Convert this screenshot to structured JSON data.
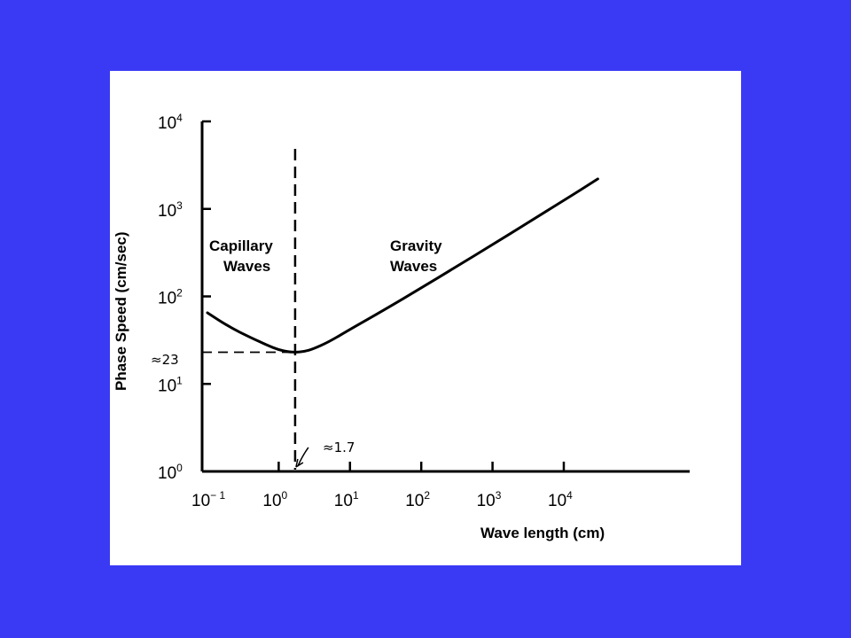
{
  "colors": {
    "background": "#3a3af5",
    "panel": "#ffffff",
    "ink": "#000000"
  },
  "chart_data": {
    "type": "line",
    "title": "",
    "xlabel": "Wave length (cm)",
    "ylabel": "Phase Speed (cm/sec)",
    "xscale": "log",
    "yscale": "log",
    "xlim": [
      0.1,
      30000
    ],
    "ylim": [
      1,
      10000
    ],
    "x_ticks": [
      {
        "base": "10",
        "exp": "− 1",
        "value": 0.1
      },
      {
        "base": "10",
        "exp": "0",
        "value": 1
      },
      {
        "base": "10",
        "exp": "1",
        "value": 10
      },
      {
        "base": "10",
        "exp": "2",
        "value": 100
      },
      {
        "base": "10",
        "exp": "3",
        "value": 1000
      },
      {
        "base": "10",
        "exp": "4",
        "value": 10000
      }
    ],
    "y_ticks": [
      {
        "base": "10",
        "exp": "0",
        "value": 1
      },
      {
        "base": "10",
        "exp": "1",
        "value": 10
      },
      {
        "base": "10",
        "exp": "2",
        "value": 100
      },
      {
        "base": "10",
        "exp": "3",
        "value": 1000
      },
      {
        "base": "10",
        "exp": "4",
        "value": 10000
      }
    ],
    "series": [
      {
        "x": [
          0.1,
          0.2,
          0.4,
          0.7,
          1.0,
          1.4,
          1.7,
          2.3,
          3.0,
          5.0,
          10,
          30,
          100,
          300,
          1000,
          3000,
          10000,
          30000
        ],
        "y": [
          65,
          45,
          34,
          27.5,
          24.5,
          23.2,
          23,
          23.5,
          25,
          30,
          42,
          70,
          125,
          215,
          390,
          680,
          1250,
          2200
        ]
      }
    ],
    "annotations": {
      "capillary_line1": "Capillary",
      "capillary_line2": "Waves",
      "gravity_line1": "Gravity",
      "gravity_line2": "Waves",
      "min_speed_label": "≈23",
      "min_speed_value": 23,
      "min_length_label": "≈1.7",
      "min_length_value": 1.7
    },
    "grid": false,
    "legend": "none"
  }
}
